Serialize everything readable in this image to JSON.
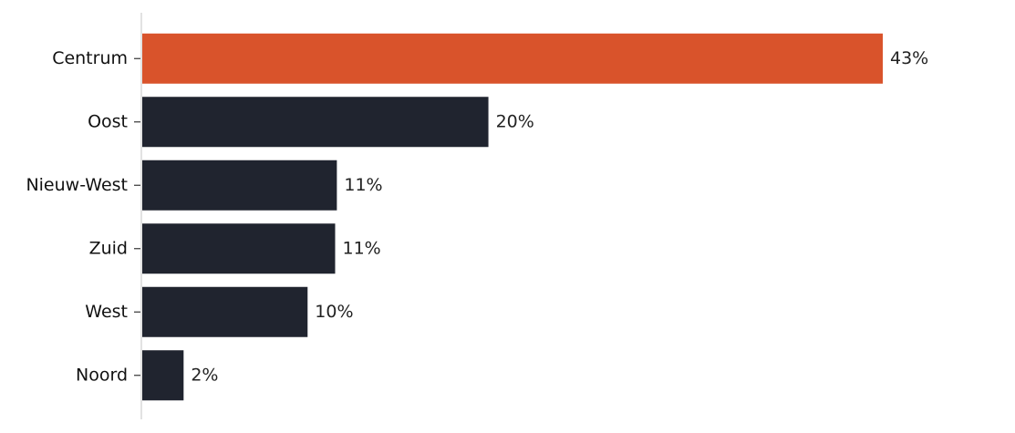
{
  "chart_data": {
    "type": "barh",
    "categories": [
      "Centrum",
      "Oost",
      "Nieuw-West",
      "Zuid",
      "West",
      "Noord"
    ],
    "values": [
      43.0,
      20.1,
      11.3,
      11.2,
      9.6,
      2.4
    ],
    "value_labels": [
      "43%",
      "20%",
      "11%",
      "11%",
      "10%",
      "2%"
    ],
    "colors": [
      "#d9532b",
      "#20242f",
      "#20242f",
      "#20242f",
      "#20242f",
      "#20242f"
    ]
  }
}
